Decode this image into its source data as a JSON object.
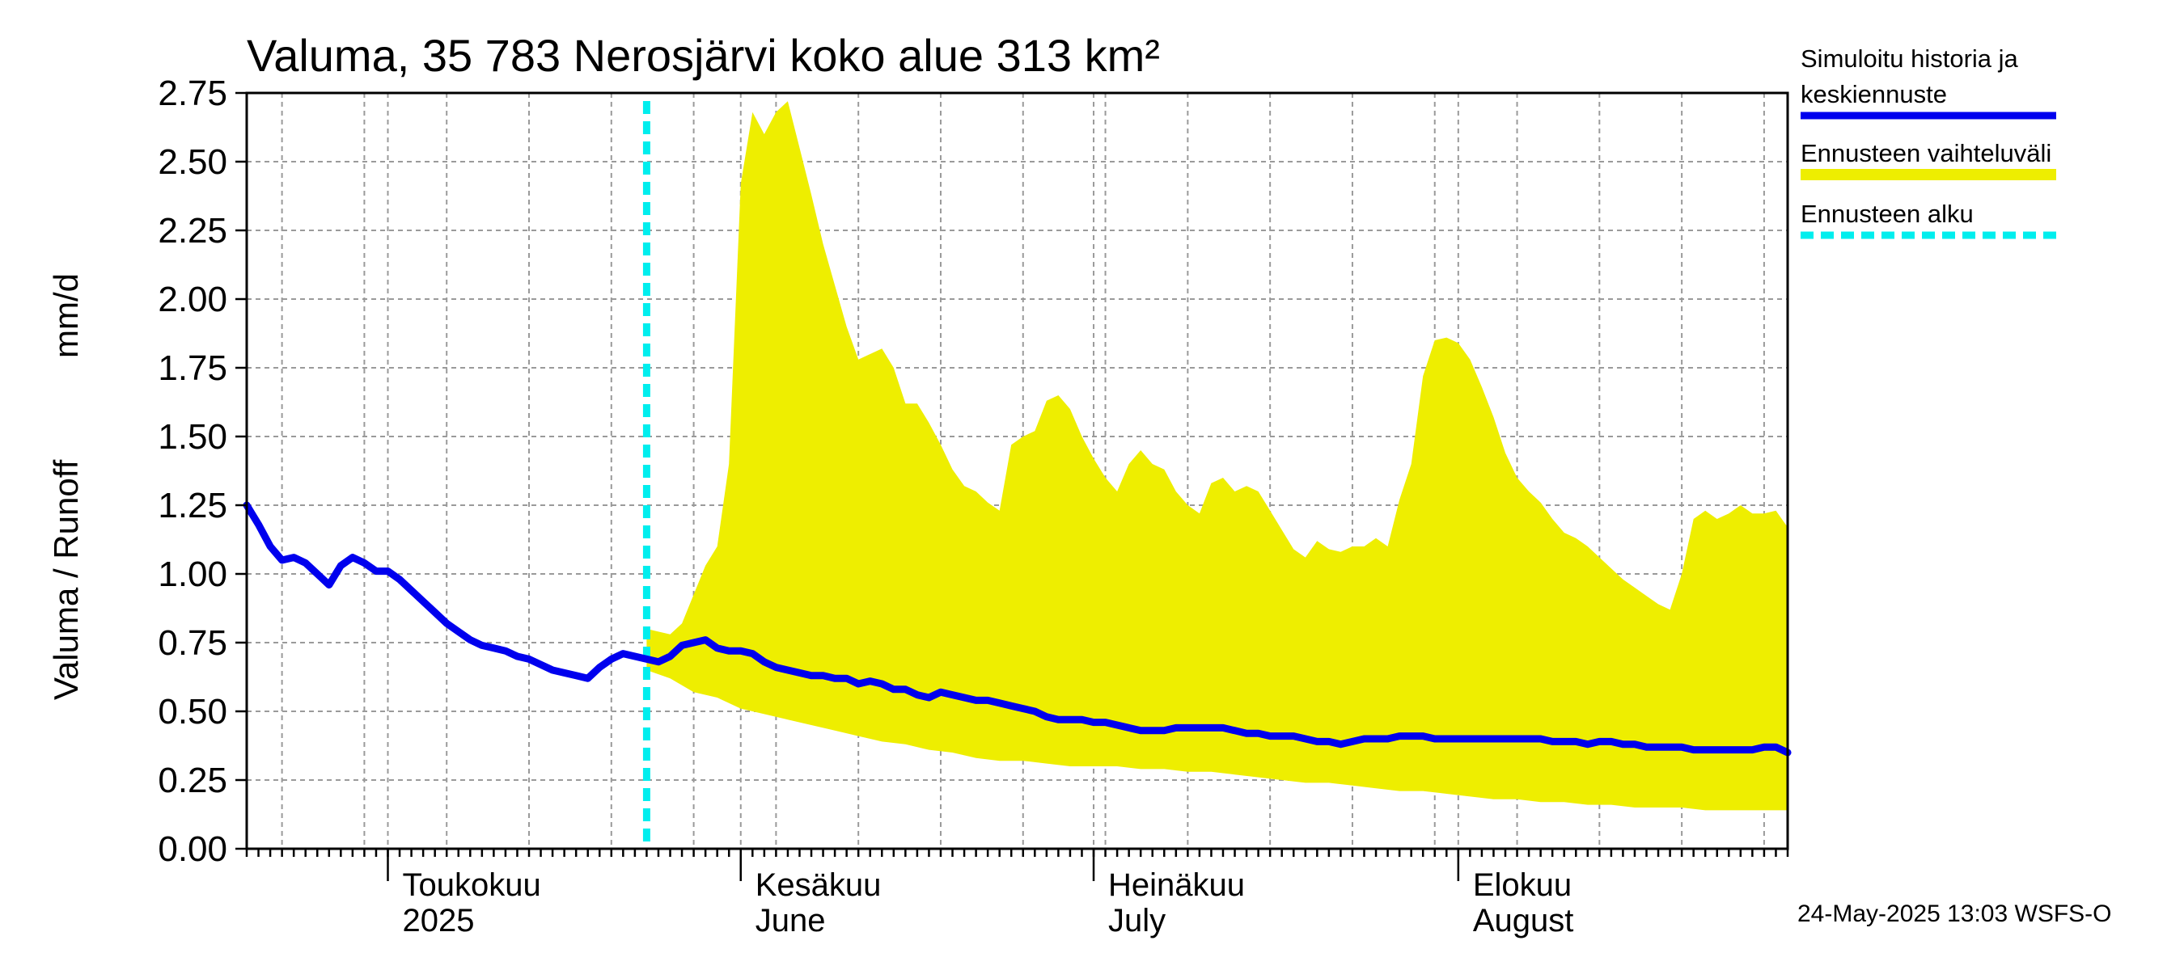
{
  "chart_data": {
    "type": "area",
    "title": "Valuma, 35 783 Nerosjärvi koko alue 313 km²",
    "ylabel_left": "Valuma / Runoff",
    "ylabel_right": "mm/d",
    "ylim": [
      0,
      2.75
    ],
    "yticks": [
      "0.00",
      "0.25",
      "0.50",
      "0.75",
      "1.00",
      "1.25",
      "1.50",
      "1.75",
      "2.00",
      "2.25",
      "2.50",
      "2.75"
    ],
    "x_range_days": [
      0,
      131
    ],
    "x_days_note": "day 0 = 2025-04-20",
    "month_labels": [
      {
        "day": 12,
        "fi": "Toukokuu",
        "en": "2025"
      },
      {
        "day": 42,
        "fi": "Kesäkuu",
        "en": "June"
      },
      {
        "day": 72,
        "fi": "Heinäkuu",
        "en": "July"
      },
      {
        "day": 103,
        "fi": "Elokuu",
        "en": "August"
      }
    ],
    "forecast_start_day": 34,
    "series": [
      {
        "name": "Simuloitu historia ja keskiennuste",
        "color": "#0000ee",
        "points": [
          [
            0,
            1.25
          ],
          [
            1,
            1.18
          ],
          [
            2,
            1.1
          ],
          [
            3,
            1.05
          ],
          [
            4,
            1.06
          ],
          [
            5,
            1.04
          ],
          [
            6,
            1.0
          ],
          [
            7,
            0.96
          ],
          [
            8,
            1.03
          ],
          [
            9,
            1.06
          ],
          [
            10,
            1.04
          ],
          [
            11,
            1.01
          ],
          [
            12,
            1.01
          ],
          [
            13,
            0.98
          ],
          [
            14,
            0.94
          ],
          [
            15,
            0.9
          ],
          [
            16,
            0.86
          ],
          [
            17,
            0.82
          ],
          [
            18,
            0.79
          ],
          [
            19,
            0.76
          ],
          [
            20,
            0.74
          ],
          [
            21,
            0.73
          ],
          [
            22,
            0.72
          ],
          [
            23,
            0.7
          ],
          [
            24,
            0.69
          ],
          [
            25,
            0.67
          ],
          [
            26,
            0.65
          ],
          [
            27,
            0.64
          ],
          [
            28,
            0.63
          ],
          [
            29,
            0.62
          ],
          [
            30,
            0.66
          ],
          [
            31,
            0.69
          ],
          [
            32,
            0.71
          ],
          [
            33,
            0.7
          ],
          [
            34,
            0.69
          ],
          [
            35,
            0.68
          ],
          [
            36,
            0.7
          ],
          [
            37,
            0.74
          ],
          [
            38,
            0.75
          ],
          [
            39,
            0.76
          ],
          [
            40,
            0.73
          ],
          [
            41,
            0.72
          ],
          [
            42,
            0.72
          ],
          [
            43,
            0.71
          ],
          [
            44,
            0.68
          ],
          [
            45,
            0.66
          ],
          [
            46,
            0.65
          ],
          [
            47,
            0.64
          ],
          [
            48,
            0.63
          ],
          [
            49,
            0.63
          ],
          [
            50,
            0.62
          ],
          [
            51,
            0.62
          ],
          [
            52,
            0.6
          ],
          [
            53,
            0.61
          ],
          [
            54,
            0.6
          ],
          [
            55,
            0.58
          ],
          [
            56,
            0.58
          ],
          [
            57,
            0.56
          ],
          [
            58,
            0.55
          ],
          [
            59,
            0.57
          ],
          [
            60,
            0.56
          ],
          [
            61,
            0.55
          ],
          [
            62,
            0.54
          ],
          [
            63,
            0.54
          ],
          [
            64,
            0.53
          ],
          [
            65,
            0.52
          ],
          [
            66,
            0.51
          ],
          [
            67,
            0.5
          ],
          [
            68,
            0.48
          ],
          [
            69,
            0.47
          ],
          [
            70,
            0.47
          ],
          [
            71,
            0.47
          ],
          [
            72,
            0.46
          ],
          [
            73,
            0.46
          ],
          [
            74,
            0.45
          ],
          [
            75,
            0.44
          ],
          [
            76,
            0.43
          ],
          [
            77,
            0.43
          ],
          [
            78,
            0.43
          ],
          [
            79,
            0.44
          ],
          [
            80,
            0.44
          ],
          [
            81,
            0.44
          ],
          [
            82,
            0.44
          ],
          [
            83,
            0.44
          ],
          [
            84,
            0.43
          ],
          [
            85,
            0.42
          ],
          [
            86,
            0.42
          ],
          [
            87,
            0.41
          ],
          [
            88,
            0.41
          ],
          [
            89,
            0.41
          ],
          [
            90,
            0.4
          ],
          [
            91,
            0.39
          ],
          [
            92,
            0.39
          ],
          [
            93,
            0.38
          ],
          [
            94,
            0.39
          ],
          [
            95,
            0.4
          ],
          [
            96,
            0.4
          ],
          [
            97,
            0.4
          ],
          [
            98,
            0.41
          ],
          [
            99,
            0.41
          ],
          [
            100,
            0.41
          ],
          [
            101,
            0.4
          ],
          [
            102,
            0.4
          ],
          [
            103,
            0.4
          ],
          [
            104,
            0.4
          ],
          [
            105,
            0.4
          ],
          [
            106,
            0.4
          ],
          [
            107,
            0.4
          ],
          [
            108,
            0.4
          ],
          [
            109,
            0.4
          ],
          [
            110,
            0.4
          ],
          [
            111,
            0.39
          ],
          [
            112,
            0.39
          ],
          [
            113,
            0.39
          ],
          [
            114,
            0.38
          ],
          [
            115,
            0.39
          ],
          [
            116,
            0.39
          ],
          [
            117,
            0.38
          ],
          [
            118,
            0.38
          ],
          [
            119,
            0.37
          ],
          [
            120,
            0.37
          ],
          [
            121,
            0.37
          ],
          [
            122,
            0.37
          ],
          [
            123,
            0.36
          ],
          [
            124,
            0.36
          ],
          [
            125,
            0.36
          ],
          [
            126,
            0.36
          ],
          [
            127,
            0.36
          ],
          [
            128,
            0.36
          ],
          [
            129,
            0.37
          ],
          [
            130,
            0.37
          ],
          [
            131,
            0.35
          ]
        ]
      },
      {
        "name": "Ennusteen vaihteluväli",
        "color": "#eeee00",
        "upper": [
          [
            34,
            0.8
          ],
          [
            36,
            0.78
          ],
          [
            37,
            0.82
          ],
          [
            39,
            1.03
          ],
          [
            40,
            1.1
          ],
          [
            41,
            1.4
          ],
          [
            42,
            2.42
          ],
          [
            43,
            2.68
          ],
          [
            44,
            2.6
          ],
          [
            45,
            2.68
          ],
          [
            46,
            2.72
          ],
          [
            47,
            2.55
          ],
          [
            48,
            2.38
          ],
          [
            49,
            2.2
          ],
          [
            50,
            2.05
          ],
          [
            51,
            1.9
          ],
          [
            52,
            1.78
          ],
          [
            53,
            1.8
          ],
          [
            54,
            1.82
          ],
          [
            55,
            1.75
          ],
          [
            56,
            1.62
          ],
          [
            57,
            1.62
          ],
          [
            58,
            1.55
          ],
          [
            59,
            1.47
          ],
          [
            60,
            1.38
          ],
          [
            61,
            1.32
          ],
          [
            62,
            1.3
          ],
          [
            63,
            1.26
          ],
          [
            64,
            1.23
          ],
          [
            65,
            1.47
          ],
          [
            66,
            1.5
          ],
          [
            67,
            1.52
          ],
          [
            68,
            1.63
          ],
          [
            69,
            1.65
          ],
          [
            70,
            1.6
          ],
          [
            71,
            1.5
          ],
          [
            72,
            1.42
          ],
          [
            73,
            1.35
          ],
          [
            74,
            1.3
          ],
          [
            75,
            1.4
          ],
          [
            76,
            1.45
          ],
          [
            77,
            1.4
          ],
          [
            78,
            1.38
          ],
          [
            79,
            1.3
          ],
          [
            80,
            1.25
          ],
          [
            81,
            1.22
          ],
          [
            82,
            1.33
          ],
          [
            83,
            1.35
          ],
          [
            84,
            1.3
          ],
          [
            85,
            1.32
          ],
          [
            86,
            1.3
          ],
          [
            87,
            1.23
          ],
          [
            88,
            1.16
          ],
          [
            89,
            1.09
          ],
          [
            90,
            1.06
          ],
          [
            91,
            1.12
          ],
          [
            92,
            1.09
          ],
          [
            93,
            1.08
          ],
          [
            94,
            1.1
          ],
          [
            95,
            1.1
          ],
          [
            96,
            1.13
          ],
          [
            97,
            1.1
          ],
          [
            98,
            1.27
          ],
          [
            99,
            1.4
          ],
          [
            100,
            1.72
          ],
          [
            101,
            1.85
          ],
          [
            102,
            1.86
          ],
          [
            103,
            1.84
          ],
          [
            104,
            1.78
          ],
          [
            105,
            1.68
          ],
          [
            106,
            1.57
          ],
          [
            107,
            1.44
          ],
          [
            108,
            1.35
          ],
          [
            109,
            1.3
          ],
          [
            110,
            1.26
          ],
          [
            111,
            1.2
          ],
          [
            112,
            1.15
          ],
          [
            113,
            1.13
          ],
          [
            114,
            1.1
          ],
          [
            115,
            1.06
          ],
          [
            116,
            1.02
          ],
          [
            117,
            0.98
          ],
          [
            118,
            0.95
          ],
          [
            119,
            0.92
          ],
          [
            120,
            0.89
          ],
          [
            121,
            0.87
          ],
          [
            122,
            1.0
          ],
          [
            123,
            1.2
          ],
          [
            124,
            1.23
          ],
          [
            125,
            1.2
          ],
          [
            126,
            1.22
          ],
          [
            127,
            1.25
          ],
          [
            128,
            1.22
          ],
          [
            129,
            1.22
          ],
          [
            130,
            1.23
          ],
          [
            131,
            1.17
          ]
        ],
        "lower": [
          [
            34,
            0.65
          ],
          [
            36,
            0.62
          ],
          [
            38,
            0.57
          ],
          [
            40,
            0.55
          ],
          [
            42,
            0.51
          ],
          [
            44,
            0.49
          ],
          [
            46,
            0.47
          ],
          [
            48,
            0.45
          ],
          [
            50,
            0.43
          ],
          [
            52,
            0.41
          ],
          [
            54,
            0.39
          ],
          [
            56,
            0.38
          ],
          [
            58,
            0.36
          ],
          [
            60,
            0.35
          ],
          [
            62,
            0.33
          ],
          [
            64,
            0.32
          ],
          [
            66,
            0.32
          ],
          [
            68,
            0.31
          ],
          [
            70,
            0.3
          ],
          [
            72,
            0.3
          ],
          [
            74,
            0.3
          ],
          [
            76,
            0.29
          ],
          [
            78,
            0.29
          ],
          [
            80,
            0.28
          ],
          [
            82,
            0.28
          ],
          [
            84,
            0.27
          ],
          [
            86,
            0.26
          ],
          [
            88,
            0.25
          ],
          [
            90,
            0.24
          ],
          [
            92,
            0.24
          ],
          [
            94,
            0.23
          ],
          [
            96,
            0.22
          ],
          [
            98,
            0.21
          ],
          [
            100,
            0.21
          ],
          [
            102,
            0.2
          ],
          [
            104,
            0.19
          ],
          [
            106,
            0.18
          ],
          [
            108,
            0.18
          ],
          [
            110,
            0.17
          ],
          [
            112,
            0.17
          ],
          [
            114,
            0.16
          ],
          [
            116,
            0.16
          ],
          [
            118,
            0.15
          ],
          [
            120,
            0.15
          ],
          [
            122,
            0.15
          ],
          [
            124,
            0.14
          ],
          [
            126,
            0.14
          ],
          [
            128,
            0.14
          ],
          [
            131,
            0.14
          ]
        ]
      },
      {
        "name": "Ennusteen alku",
        "color": "#00eeee"
      }
    ],
    "legend": {
      "item1_line1": "Simuloitu historia ja",
      "item1_line2": "keskiennuste",
      "item2": "Ennusteen vaihteluväli",
      "item3": "Ennusteen alku"
    },
    "timestamp": "24-May-2025 13:03 WSFS-O"
  }
}
